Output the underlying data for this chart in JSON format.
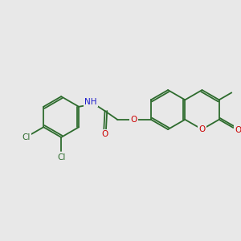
{
  "bg": "#e8e8e8",
  "bc": "#2d6b2d",
  "lw": 1.3,
  "atom_colors": {
    "O": "#cc0000",
    "N": "#1a1acc",
    "Cl": "#2d6b2d"
  },
  "fs": 7.5,
  "dbo": 0.07
}
